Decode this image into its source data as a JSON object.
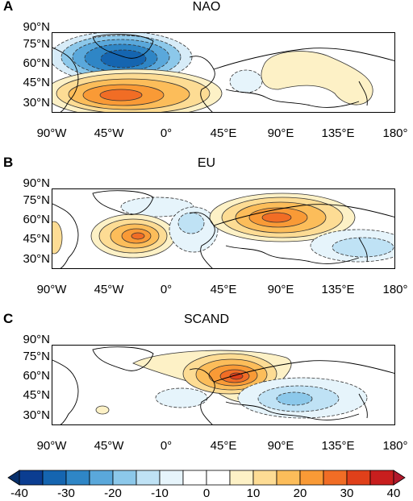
{
  "panels": [
    {
      "letter": "A",
      "title": "NAO"
    },
    {
      "letter": "B",
      "title": "EU"
    },
    {
      "letter": "C",
      "title": "SCAND"
    }
  ],
  "lat_labels": [
    "90°N",
    "75°N",
    "60°N",
    "45°N",
    "30°N"
  ],
  "lon_labels": [
    "90°W",
    "45°W",
    "0°",
    "45°E",
    "90°E",
    "135°E",
    "180°"
  ],
  "colorbar": {
    "labels": [
      "-40",
      "-30",
      "-20",
      "-10",
      "0",
      "10",
      "20",
      "30",
      "40"
    ],
    "colors": [
      "#0b3d91",
      "#1565b0",
      "#2f86c6",
      "#5aa8db",
      "#8cc8ea",
      "#bfe2f5",
      "#e6f4fb",
      "#ffffff",
      "#ffffff",
      "#fdf1c6",
      "#fddc94",
      "#fcbd5a",
      "#f99a36",
      "#f16d25",
      "#e0401a",
      "#c81e1e"
    ]
  },
  "colors": {
    "positive_strong": "#e0401a",
    "positive_mid": "#f99a36",
    "positive_weak": "#fddc94",
    "negative_strong": "#1565b0",
    "negative_mid": "#5aa8db",
    "negative_weak": "#d7ecf8"
  }
}
